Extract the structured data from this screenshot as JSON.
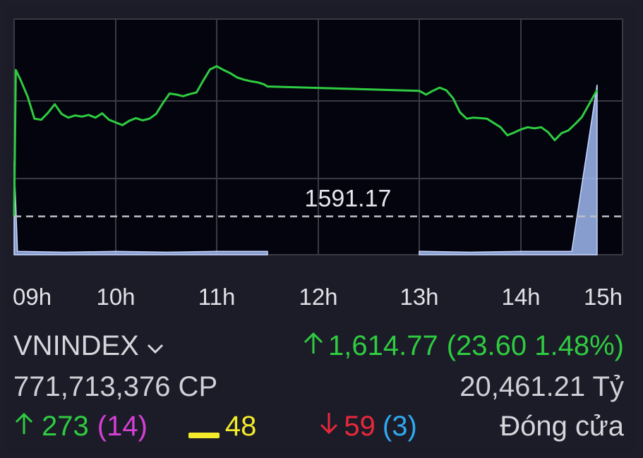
{
  "chart_data": {
    "type": "line",
    "reference_value": 1591.17,
    "reference_label": "1591.17",
    "x_ticks": [
      "09h",
      "10h",
      "11h",
      "12h",
      "13h",
      "14h",
      "15h"
    ],
    "ylim": [
      1584,
      1628
    ],
    "line_color": "#2ecc40",
    "volume_color": "#9fb8f0",
    "price_series": [
      [
        "09:00",
        1591.2
      ],
      [
        "09:01",
        1618.5
      ],
      [
        "09:04",
        1616.5
      ],
      [
        "09:08",
        1613.5
      ],
      [
        "09:12",
        1609.4
      ],
      [
        "09:16",
        1609.2
      ],
      [
        "09:20",
        1610.5
      ],
      [
        "09:24",
        1612.1
      ],
      [
        "09:28",
        1610.3
      ],
      [
        "09:32",
        1609.6
      ],
      [
        "09:36",
        1610.0
      ],
      [
        "09:40",
        1609.8
      ],
      [
        "09:44",
        1610.1
      ],
      [
        "09:48",
        1609.6
      ],
      [
        "09:52",
        1610.4
      ],
      [
        "09:56",
        1609.2
      ],
      [
        "10:00",
        1608.7
      ],
      [
        "10:04",
        1608.2
      ],
      [
        "10:08",
        1609.0
      ],
      [
        "10:12",
        1609.5
      ],
      [
        "10:16",
        1609.1
      ],
      [
        "10:20",
        1609.4
      ],
      [
        "10:24",
        1610.3
      ],
      [
        "10:28",
        1612.3
      ],
      [
        "10:32",
        1614.1
      ],
      [
        "10:36",
        1613.9
      ],
      [
        "10:40",
        1613.6
      ],
      [
        "10:44",
        1614.0
      ],
      [
        "10:48",
        1614.3
      ],
      [
        "10:52",
        1616.5
      ],
      [
        "10:56",
        1618.6
      ],
      [
        "11:00",
        1619.2
      ],
      [
        "11:04",
        1618.5
      ],
      [
        "11:08",
        1617.9
      ],
      [
        "11:12",
        1617.1
      ],
      [
        "11:16",
        1616.7
      ],
      [
        "11:20",
        1616.4
      ],
      [
        "11:24",
        1616.2
      ],
      [
        "11:28",
        1615.8
      ],
      [
        "11:30",
        1615.4
      ],
      [
        "13:00",
        1614.6
      ],
      [
        "13:04",
        1613.9
      ],
      [
        "13:08",
        1614.6
      ],
      [
        "13:12",
        1615.2
      ],
      [
        "13:16",
        1614.7
      ],
      [
        "13:20",
        1613.2
      ],
      [
        "13:24",
        1610.6
      ],
      [
        "13:28",
        1609.4
      ],
      [
        "13:32",
        1609.6
      ],
      [
        "13:36",
        1609.5
      ],
      [
        "13:40",
        1609.4
      ],
      [
        "13:44",
        1608.6
      ],
      [
        "13:48",
        1607.8
      ],
      [
        "13:52",
        1606.3
      ],
      [
        "13:56",
        1606.8
      ],
      [
        "14:00",
        1607.4
      ],
      [
        "14:04",
        1607.8
      ],
      [
        "14:08",
        1607.6
      ],
      [
        "14:12",
        1607.8
      ],
      [
        "14:16",
        1606.9
      ],
      [
        "14:20",
        1605.4
      ],
      [
        "14:24",
        1606.7
      ],
      [
        "14:28",
        1607.2
      ],
      [
        "14:32",
        1608.4
      ],
      [
        "14:36",
        1609.7
      ],
      [
        "14:45",
        1614.77
      ]
    ],
    "volume_series": [
      [
        "09:00",
        0.55
      ],
      [
        "09:02",
        0.02
      ],
      [
        "09:30",
        0.015
      ],
      [
        "10:00",
        0.02
      ],
      [
        "10:30",
        0.015
      ],
      [
        "11:00",
        0.02
      ],
      [
        "11:30",
        0.02
      ],
      [
        "13:00",
        0.02
      ],
      [
        "13:30",
        0.015
      ],
      [
        "14:00",
        0.02
      ],
      [
        "14:29",
        0.02
      ],
      [
        "14:30",
        0.02
      ],
      [
        "14:45",
        1.0
      ]
    ]
  },
  "index": {
    "name": "VNINDEX",
    "value": "1,614.77",
    "change": "(23.60 1.48%)",
    "volume": "771,713,376 CP",
    "turnover": "20,461.21 Tỷ"
  },
  "breadth": {
    "up_count": "273",
    "ceiling_count": "(14)",
    "unchanged_count": "48",
    "down_count": "59",
    "floor_count": "(3)",
    "status": "Đóng cửa"
  },
  "colors": {
    "up": "#2ecc40",
    "ceiling": "#d63fd6",
    "unchanged": "#f4ec2a",
    "down": "#e8283a",
    "floor": "#2fa8ef"
  }
}
